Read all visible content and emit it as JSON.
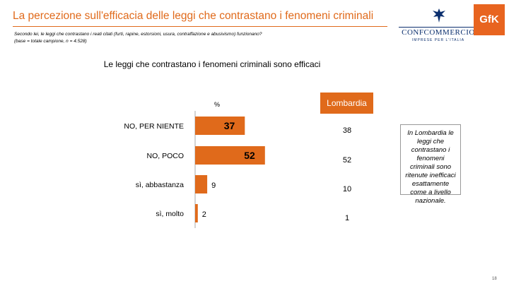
{
  "header": {
    "title": "La percezione sull'efficacia delle leggi che contrastano i fenomeni criminali",
    "subtitle_line1": "Secondo lei, le leggi che contrastano i reati citati (furti, rapine, estorsioni, usura, contraffazione e abusivismo) funzionano?",
    "subtitle_line2": "(base = totale campione, n = 4.528)"
  },
  "logos": {
    "confcommercio_word": "CONFCOMMERCIO",
    "confcommercio_tag": "IMPRESE PER L'ITALIA",
    "gfk": "GfK"
  },
  "chart_data": {
    "type": "bar",
    "orientation": "horizontal",
    "title": "Le leggi che contrastano i fenomeni criminali sono efficaci",
    "unit_label": "%",
    "categories": [
      "NO, PER NIENTE",
      "NO, POCO",
      "sì, abbastanza",
      "sì, molto"
    ],
    "values": [
      37,
      52,
      9,
      2
    ],
    "bar_color": "#e06a1b",
    "xlim": [
      0,
      60
    ],
    "region": {
      "label": "Lombardia",
      "values": [
        38,
        52,
        10,
        1
      ]
    }
  },
  "note": "In Lombardia le leggi che contrastano i fenomeni criminali sono ritenute inefficaci esattamente come a livello nazionale.",
  "page_number": "18"
}
